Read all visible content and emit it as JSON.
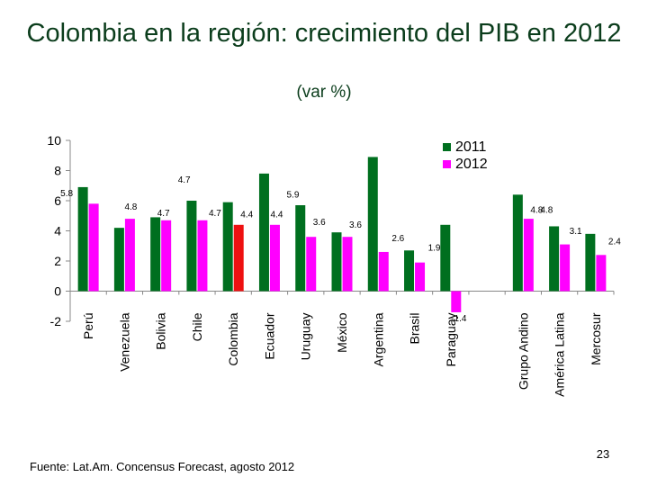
{
  "slide": {
    "title": "Colombia en la región: crecimiento del PIB en 2012",
    "subtitle": "(var %)",
    "source": "Fuente: Lat.Am. Concensus Forecast, agosto 2012",
    "page_number": "23"
  },
  "colors": {
    "series_2011": "#006f1f",
    "series_2012": "#ff00ff",
    "highlight_2012": "#ee1111",
    "title_color": "#0b3d1c"
  },
  "chart_data": {
    "type": "bar",
    "title": "",
    "xlabel": "",
    "ylabel": "",
    "ylim": [
      -2,
      10
    ],
    "yticks": [
      -2,
      0,
      2,
      4,
      6,
      8,
      10
    ],
    "grid": false,
    "legend_position": "top-right",
    "categories": [
      "Perú",
      "Venezuela",
      "Bolivia",
      "Chile",
      "Colombia",
      "Ecuador",
      "Uruguay",
      "México",
      "Argentina",
      "Brasil",
      "Paraguay",
      "",
      "Grupo Andino",
      "América Latina",
      "Mercosur"
    ],
    "highlight_category": "Colombia",
    "series": [
      {
        "name": "2011",
        "values": [
          6.9,
          4.2,
          4.9,
          6.0,
          5.9,
          7.8,
          5.7,
          3.9,
          8.9,
          2.7,
          4.4,
          null,
          6.4,
          4.3,
          3.8
        ],
        "labels": [
          "",
          "",
          "",
          "",
          "",
          "",
          "",
          "",
          "",
          "",
          "",
          "",
          "",
          "",
          ""
        ]
      },
      {
        "name": "2012",
        "values": [
          5.8,
          4.8,
          4.7,
          4.7,
          4.4,
          4.4,
          3.6,
          3.6,
          2.6,
          1.9,
          -1.4,
          null,
          4.8,
          3.1,
          2.4
        ],
        "labels": [
          "5.8",
          "4.8",
          "4.7",
          "4.7",
          "4.4",
          "4.4",
          "3.6",
          "3.6",
          "2.6",
          "1.9",
          "-1.4",
          "",
          "4.8",
          "3.1",
          "2.4"
        ]
      }
    ],
    "annotations": [
      "4.7",
      "5.9",
      "4.8"
    ]
  }
}
